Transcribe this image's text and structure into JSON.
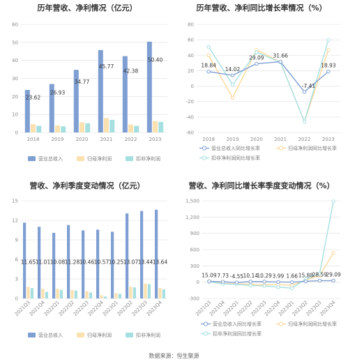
{
  "source": "数据来源：恒生聚源",
  "colors": {
    "revenue": "#7f9fd2",
    "net_profit": "#fbe1b0",
    "deducted_profit": "#a6dfe0",
    "grid": "#e6e6e6",
    "axis_text": "#8a8a8a"
  },
  "chart_data": [
    {
      "id": "c1",
      "type": "bar",
      "title": "历年营收、净利情况（亿元）",
      "categories": [
        "2018",
        "2019",
        "2020",
        "2021",
        "2022",
        "2023"
      ],
      "ylim": [
        0,
        60
      ],
      "yticks": [
        0,
        10,
        20,
        30,
        40,
        50,
        60
      ],
      "grid": true,
      "legend": "bottom",
      "series": [
        {
          "name": "营业总收入",
          "color": "#7f9fd2",
          "values": [
            23.62,
            26.93,
            34.77,
            45.77,
            42.38,
            50.4
          ],
          "labels": [
            "23.62",
            "26.93",
            "34.77",
            "45.77",
            "42.38",
            "50.40"
          ]
        },
        {
          "name": "归母净利润",
          "color": "#fbe1b0",
          "values": [
            4.6,
            3.9,
            5.6,
            8.0,
            4.4,
            6.3
          ]
        },
        {
          "name": "扣非净利润",
          "color": "#a6dfe0",
          "values": [
            3.7,
            3.4,
            5.1,
            7.0,
            3.7,
            5.9
          ]
        }
      ]
    },
    {
      "id": "c2",
      "type": "line",
      "title": "历年营收、净利同比增长率情况（%）",
      "categories": [
        "2018",
        "2019",
        "2020",
        "2021",
        "2022",
        "2023"
      ],
      "ylim": [
        -60,
        80
      ],
      "yticks": [
        -60,
        -40,
        -20,
        0,
        20,
        40,
        60,
        80
      ],
      "grid": true,
      "legend": "bottom",
      "series": [
        {
          "name": "营业总收入同比增长率",
          "color": "#7f9fd2",
          "values": [
            18.84,
            14.02,
            29.09,
            31.66,
            -7.41,
            18.93
          ],
          "labels": [
            "18.84",
            "14.02",
            "29.09",
            "31.66",
            "-7.41",
            "18.93"
          ]
        },
        {
          "name": "归母净利润同比增长率",
          "color": "#fbd79a",
          "values": [
            40,
            -15,
            47,
            31,
            -46,
            47
          ]
        },
        {
          "name": "扣非净利润同比增长率",
          "color": "#a6dfe0",
          "values": [
            51,
            2,
            44,
            31,
            -46,
            60
          ]
        }
      ]
    },
    {
      "id": "c3",
      "type": "bar",
      "title": "营收、净利季度变动情况（亿元）",
      "categories": [
        "2021Q3",
        "2021Q4",
        "2022Q1",
        "2022Q2",
        "2022Q3",
        "2022Q4",
        "2023Q1",
        "2023Q2",
        "2023Q3",
        "2023Q4"
      ],
      "ylim": [
        0,
        15
      ],
      "yticks": [
        0,
        3,
        6,
        9,
        12,
        15
      ],
      "grid": true,
      "legend": "bottom",
      "series": [
        {
          "name": "营业总收入",
          "color": "#7f9fd2",
          "values": [
            11.65,
            11.01,
            10.08,
            11.28,
            10.46,
            10.57,
            10.25,
            13.07,
            13.44,
            13.64
          ],
          "labels": [
            "11.65",
            "11.01",
            "10.08",
            "11.28",
            "10.46",
            "10.57",
            "10.25",
            "13.07",
            "13.44",
            "13.64"
          ]
        },
        {
          "name": "归母净利润",
          "color": "#fbe1b0",
          "values": [
            1.8,
            1.5,
            1.5,
            1.3,
            1.1,
            0.5,
            0.8,
            1.8,
            2.3,
            1.6
          ]
        },
        {
          "name": "扣非净利润",
          "color": "#a6dfe0",
          "values": [
            1.6,
            1.0,
            1.3,
            1.2,
            0.9,
            0.3,
            0.7,
            1.7,
            2.2,
            1.4
          ]
        }
      ]
    },
    {
      "id": "c4",
      "type": "line",
      "title": "营收、净利同比增长率季度变动情况（%）",
      "categories": [
        "2021Q3",
        "2021Q4",
        "2022Q1",
        "2022Q2",
        "2022Q3",
        "2022Q4",
        "2023Q1",
        "2023Q2",
        "2023Q3",
        "2023Q4"
      ],
      "ylim": [
        -300,
        1500
      ],
      "yticks": [
        -300,
        0,
        300,
        600,
        900,
        1200,
        1500
      ],
      "ytick_labels": [
        "-300",
        "0",
        "300",
        "600",
        "900",
        "1,200",
        "1,500"
      ],
      "grid": true,
      "legend": "bottom",
      "series": [
        {
          "name": "营业总收入同比增长率",
          "color": "#7f9fd2",
          "values": [
            15.09,
            7.73,
            -4.55,
            10.14,
            10.29,
            3.99,
            1.66,
            15.88,
            28.59,
            29.09
          ],
          "labels": [
            "15.09",
            "7.73",
            "-4.55",
            "10.14",
            "10.29",
            "3.99",
            "1.66",
            "15.88",
            "28.59",
            "29.09"
          ]
        },
        {
          "name": "归母净利润同比增长率",
          "color": "#fbd79a",
          "values": [
            20,
            -20,
            -30,
            -40,
            -50,
            -40,
            -60,
            40,
            120,
            540
          ]
        },
        {
          "name": "扣非净利润同比增长率",
          "color": "#a6dfe0",
          "values": [
            10,
            -30,
            -40,
            -60,
            -70,
            -90,
            -110,
            60,
            160,
            1490
          ]
        }
      ]
    }
  ]
}
